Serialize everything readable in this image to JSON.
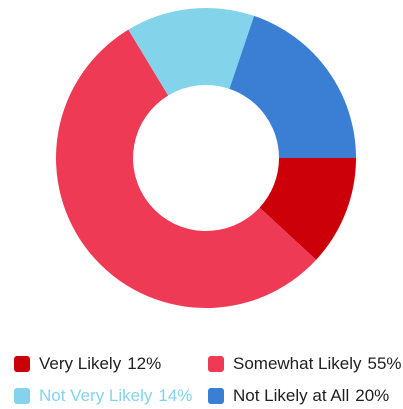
{
  "chart_data": {
    "type": "pie",
    "variant": "donut",
    "title": "",
    "slices": [
      {
        "label": "Very Likely",
        "value": 12,
        "value_label": "12%",
        "color": "#cc0008",
        "text_color": "#1f1f1f"
      },
      {
        "label": "Somewhat Likely",
        "value": 55,
        "value_label": "55%",
        "color": "#ee3a55",
        "text_color": "#1f1f1f"
      },
      {
        "label": "Not Very Likely",
        "value": 14,
        "value_label": "14%",
        "color": "#83d4ea",
        "text_color": "#83d4ea"
      },
      {
        "label": "Not Likely at All",
        "value": 20,
        "value_label": "20%",
        "color": "#3b7fd4",
        "text_color": "#1f1f1f"
      }
    ],
    "legend_position": "bottom"
  }
}
